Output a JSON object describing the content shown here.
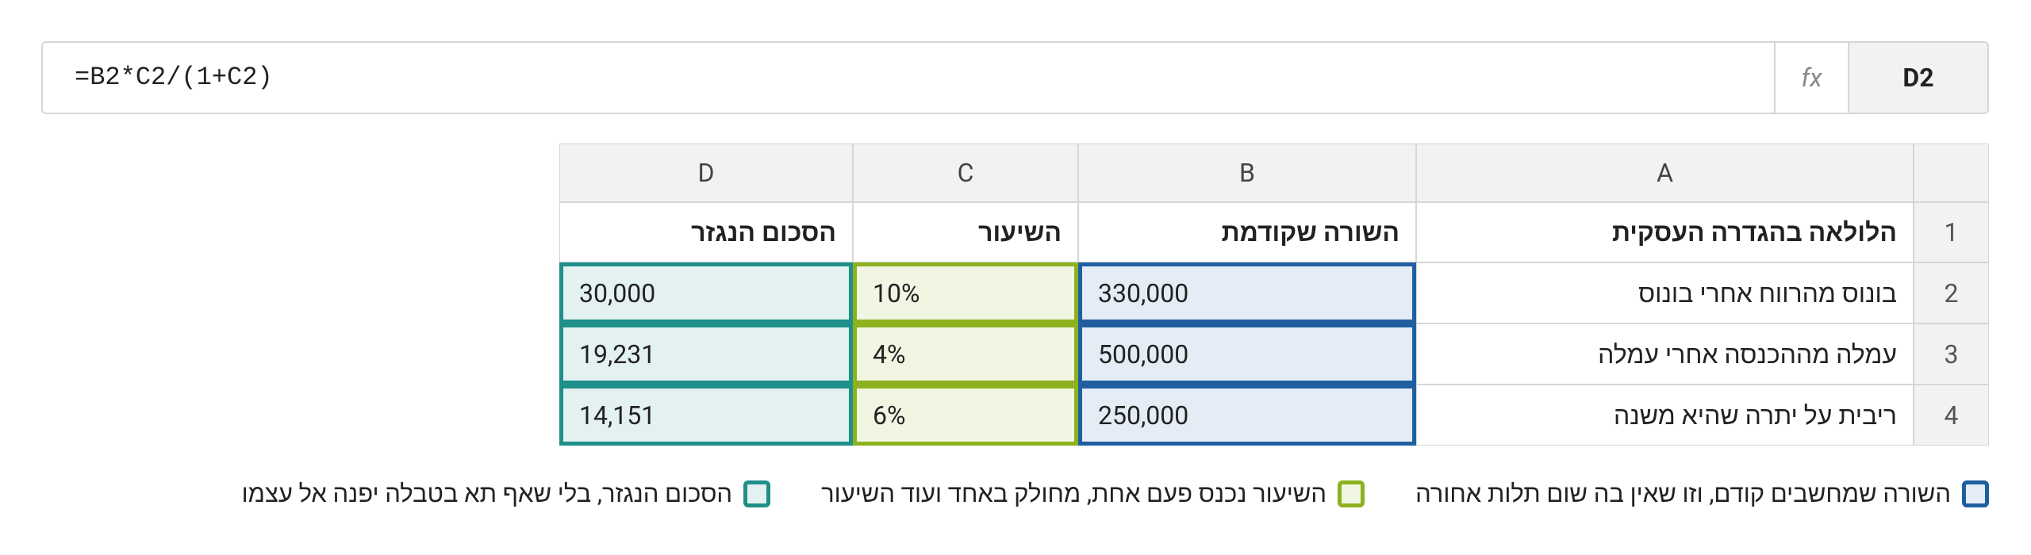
{
  "formula_bar": {
    "name_box": "D2",
    "fx": "fx",
    "formula": "=B2*C2/(1+C2)"
  },
  "table": {
    "column_headers": [
      "A",
      "B",
      "C",
      "D"
    ],
    "row_numbers": [
      "1",
      "2",
      "3",
      "4"
    ],
    "rows": [
      [
        "הלולאה בהגדרה העסקית",
        "השורה שקודמת",
        "השיעור",
        "הסכום הנגזר"
      ],
      [
        "בונוס מהרווח אחרי בונוס",
        "330,000",
        "10%",
        "30,000"
      ],
      [
        "עמלה מההכנסה אחרי עמלה",
        "500,000",
        "4%",
        "19,231"
      ],
      [
        "ריבית על יתרה שהיא משנה",
        "250,000",
        "6%",
        "14,151"
      ]
    ]
  },
  "legend": [
    "השורה שמחשבים קודם, וזו שאין בה שום תלות אחורה",
    "השיעור נכנס פעם אחת, מחולק באחד ועוד השיעור",
    "הסכום הנגזר, בלי שאף תא בטבלה יפנה אל עצמו"
  ]
}
